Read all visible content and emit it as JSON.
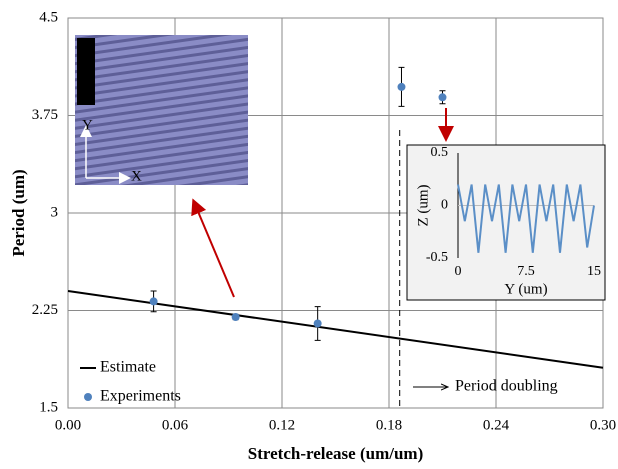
{
  "chart_data": [
    {
      "type": "scatter",
      "xlabel": "Stretch-release (um/um)",
      "ylabel": "Period (um)",
      "xlim": [
        0,
        0.3
      ],
      "ylim": [
        1.5,
        4.5
      ],
      "xticks": [
        {
          "value": 0,
          "label": "0.00"
        },
        0.06,
        0.12,
        0.18,
        0.24,
        {
          "value": 0.3,
          "label": "0.30"
        }
      ],
      "yticks": [
        1.5,
        2.25,
        3,
        3.75,
        4.5
      ],
      "grid": true,
      "legend": "lower left",
      "series": [
        {
          "name": "Estimate",
          "type": "line",
          "color": "#000000",
          "x": [
            0,
            0.3
          ],
          "values": [
            2.4,
            1.81
          ]
        },
        {
          "name": "Experiments",
          "type": "scatter",
          "color": "#4f81bd",
          "x": [
            0.048,
            0.094,
            0.14,
            0.187,
            0.21
          ],
          "values": [
            2.32,
            2.2,
            2.15,
            3.97,
            3.89
          ],
          "errors": [
            0.08,
            0.02,
            0.13,
            0.15,
            0.05
          ]
        }
      ],
      "vline": 0.186,
      "annotation": "Period doubling",
      "image_axis_labels": [
        "Y",
        "X"
      ]
    },
    {
      "type": "line",
      "xlabel": "Y (um)",
      "ylabel": "Z (um)",
      "xlim": [
        0,
        15
      ],
      "ylim": [
        -0.5,
        0.5
      ],
      "xticks": [
        0,
        7.5,
        15
      ],
      "yticks": [
        -0.5,
        0,
        0.5
      ],
      "grid": false,
      "series": [
        {
          "type": "line",
          "color": "#5b8fc7",
          "x": [
            0,
            0.75,
            1.5,
            2.25,
            3,
            3.75,
            4.5,
            5.25,
            6,
            6.75,
            7.5,
            8.25,
            9,
            9.75,
            10.5,
            11.25,
            12,
            12.75,
            13.5,
            14.25,
            15
          ],
          "values": [
            0.2,
            -0.15,
            0.2,
            -0.45,
            0.2,
            -0.15,
            0.2,
            -0.45,
            0.2,
            -0.15,
            0.2,
            -0.45,
            0.2,
            -0.15,
            0.2,
            -0.45,
            0.2,
            -0.15,
            0.2,
            -0.4,
            0
          ]
        }
      ]
    }
  ]
}
